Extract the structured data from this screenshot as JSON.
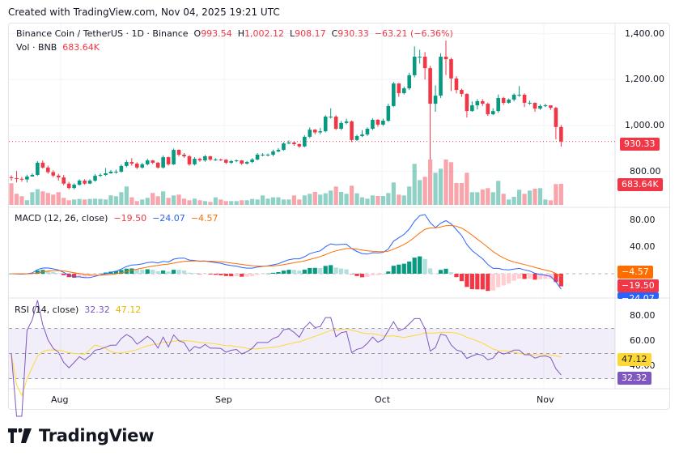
{
  "header": {
    "created": "Created with TradingView.com, Nov 04, 2025 19:21 UTC"
  },
  "legend": {
    "symbol": "Binance Coin / TetherUS · 1D · Binance",
    "o_label": "O",
    "o": "993.54",
    "h_label": "H",
    "h": "1,002.12",
    "l_label": "L",
    "l": "908.17",
    "c_label": "C",
    "c": "930.33",
    "change": "−63.21 (−6.36%)",
    "vol_label": "Vol · BNB",
    "vol": "683.64K"
  },
  "macd_legend": {
    "label": "MACD (12, 26, close)",
    "histogram": "−19.50",
    "macd": "−24.07",
    "signal": "−4.57"
  },
  "rsi_legend": {
    "label": "RSI (14, close)",
    "rsi": "32.32",
    "rsi_ma": "47.12"
  },
  "axis": {
    "price_ticks": [
      "1,400.00",
      "1,200.00",
      "1,000.00",
      "800.00"
    ],
    "macd_ticks": [
      "80.00",
      "40.00"
    ],
    "rsi_ticks": [
      "80.00",
      "60.00",
      "40.00"
    ],
    "time_ticks": [
      "Aug",
      "Sep",
      "Oct",
      "Nov"
    ],
    "tags": {
      "price": "930.33",
      "volume": "683.64K",
      "signal": "−4.57",
      "histogram": "−19.50",
      "macd": "−24.07",
      "rsi_ma": "47.12",
      "rsi": "32.32"
    }
  },
  "colors": {
    "up": "#089981",
    "down": "#f23645",
    "macd": "#2962ff",
    "signal": "#ff6d00",
    "rsi": "#7e57c2",
    "rsi_ma": "#fdd835"
  },
  "brand": {
    "name": "TradingView"
  },
  "chart_data": {
    "type": "candlestick",
    "interval": "1D",
    "first_date": "2025-07-22",
    "last_date": "2025-11-04",
    "ylim": [
      740,
      1420
    ],
    "grid": true,
    "open": [
      775,
      771,
      768,
      765,
      778,
      785,
      838,
      817,
      797,
      782,
      774,
      747,
      728,
      742,
      760,
      747,
      760,
      781,
      785,
      792,
      799,
      799,
      824,
      841,
      834,
      817,
      831,
      848,
      838,
      817,
      862,
      831,
      894,
      873,
      866,
      831,
      855,
      848,
      866,
      852,
      852,
      851,
      838,
      845,
      848,
      834,
      841,
      852,
      873,
      873,
      873,
      887,
      894,
      922,
      926,
      919,
      909,
      951,
      982,
      970,
      975,
      1039,
      1039,
      986,
      1011,
      1018,
      937,
      954,
      961,
      986,
      1025,
      1004,
      1021,
      1085,
      1183,
      1141,
      1162,
      1219,
      1300,
      1300,
      1250,
      1095,
      1130,
      1300,
      1289,
      1205,
      1155,
      1138,
      1063,
      1088,
      1106,
      1095,
      1049,
      1063,
      1120,
      1099,
      1113,
      1134,
      1134,
      1099,
      1099,
      1074,
      1085,
      1088,
      1077,
      993.54
    ],
    "high": [
      783,
      802,
      776,
      786,
      792,
      845,
      848,
      825,
      805,
      790,
      785,
      755,
      748,
      766,
      766,
      766,
      788,
      792,
      815,
      806,
      808,
      830,
      850,
      858,
      840,
      838,
      856,
      850,
      842,
      870,
      865,
      900,
      896,
      880,
      872,
      862,
      860,
      872,
      868,
      858,
      856,
      854,
      850,
      852,
      850,
      846,
      858,
      880,
      880,
      878,
      895,
      902,
      928,
      935,
      932,
      922,
      958,
      992,
      985,
      990,
      1045,
      1075,
      1045,
      1020,
      1030,
      1022,
      960,
      980,
      992,
      1032,
      1028,
      1030,
      1095,
      1190,
      1185,
      1170,
      1230,
      1345,
      1330,
      1320,
      1260,
      1175,
      1315,
      1370,
      1295,
      1215,
      1160,
      1140,
      1105,
      1115,
      1115,
      1100,
      1075,
      1135,
      1125,
      1118,
      1140,
      1172,
      1140,
      1108,
      1100,
      1092,
      1095,
      1085,
      1082,
      1002.12
    ],
    "low": [
      760,
      752,
      755,
      752,
      778,
      780,
      812,
      790,
      775,
      760,
      740,
      722,
      722,
      738,
      742,
      745,
      755,
      776,
      780,
      790,
      790,
      795,
      818,
      825,
      810,
      812,
      826,
      832,
      812,
      812,
      825,
      828,
      866,
      860,
      825,
      826,
      842,
      842,
      846,
      846,
      846,
      832,
      833,
      840,
      828,
      830,
      836,
      848,
      866,
      866,
      866,
      884,
      890,
      918,
      912,
      903,
      905,
      945,
      962,
      962,
      970,
      1030,
      980,
      980,
      1005,
      928,
      932,
      950,
      955,
      980,
      995,
      998,
      1015,
      1080,
      1125,
      1135,
      1155,
      1210,
      1270,
      1200,
      852,
      1060,
      1120,
      1220,
      1150,
      1140,
      1125,
      1035,
      1060,
      1070,
      1085,
      1042,
      1045,
      1055,
      1090,
      1095,
      1105,
      1125,
      1080,
      1090,
      1060,
      1068,
      1080,
      1068,
      940,
      908.17
    ],
    "close": [
      771,
      768,
      765,
      778,
      785,
      838,
      817,
      797,
      782,
      774,
      747,
      728,
      742,
      760,
      747,
      760,
      781,
      785,
      792,
      799,
      799,
      824,
      841,
      834,
      817,
      831,
      848,
      838,
      817,
      862,
      831,
      894,
      873,
      866,
      831,
      855,
      848,
      866,
      852,
      852,
      851,
      838,
      845,
      848,
      834,
      841,
      852,
      873,
      873,
      873,
      887,
      894,
      922,
      926,
      919,
      909,
      951,
      982,
      970,
      975,
      1039,
      1039,
      986,
      1011,
      1018,
      937,
      954,
      961,
      986,
      1025,
      1004,
      1021,
      1085,
      1183,
      1141,
      1162,
      1219,
      1300,
      1300,
      1250,
      1095,
      1130,
      1300,
      1289,
      1205,
      1155,
      1138,
      1063,
      1088,
      1106,
      1095,
      1049,
      1063,
      1120,
      1099,
      1113,
      1134,
      1134,
      1099,
      1099,
      1074,
      1085,
      1088,
      1077,
      993.54,
      930.33
    ],
    "volume_k": [
      704,
      361,
      282,
      150,
      414,
      510,
      440,
      387,
      334,
      414,
      229,
      150,
      176,
      194,
      176,
      194,
      202,
      194,
      176,
      308,
      282,
      414,
      598,
      246,
      123,
      176,
      229,
      387,
      282,
      440,
      229,
      308,
      334,
      202,
      150,
      202,
      150,
      123,
      97,
      246,
      176,
      123,
      123,
      123,
      150,
      150,
      194,
      176,
      308,
      202,
      246,
      246,
      176,
      176,
      308,
      175,
      307,
      360,
      421,
      333,
      377,
      465,
      596,
      421,
      360,
      623,
      377,
      246,
      202,
      307,
      289,
      289,
      386,
      728,
      333,
      307,
      596,
      1333,
      807,
      912,
      1473,
      1044,
      1175,
      1473,
      1386,
      710,
      710,
      1044,
      412,
      412,
      500,
      544,
      412,
      781,
      360,
      175,
      263,
      491,
      360,
      465,
      526,
      544,
      175,
      149,
      675,
      683.64
    ],
    "macd_params": [
      12,
      26
    ],
    "rsi_period": 14,
    "rsi_bands": [
      70,
      50,
      30
    ]
  }
}
